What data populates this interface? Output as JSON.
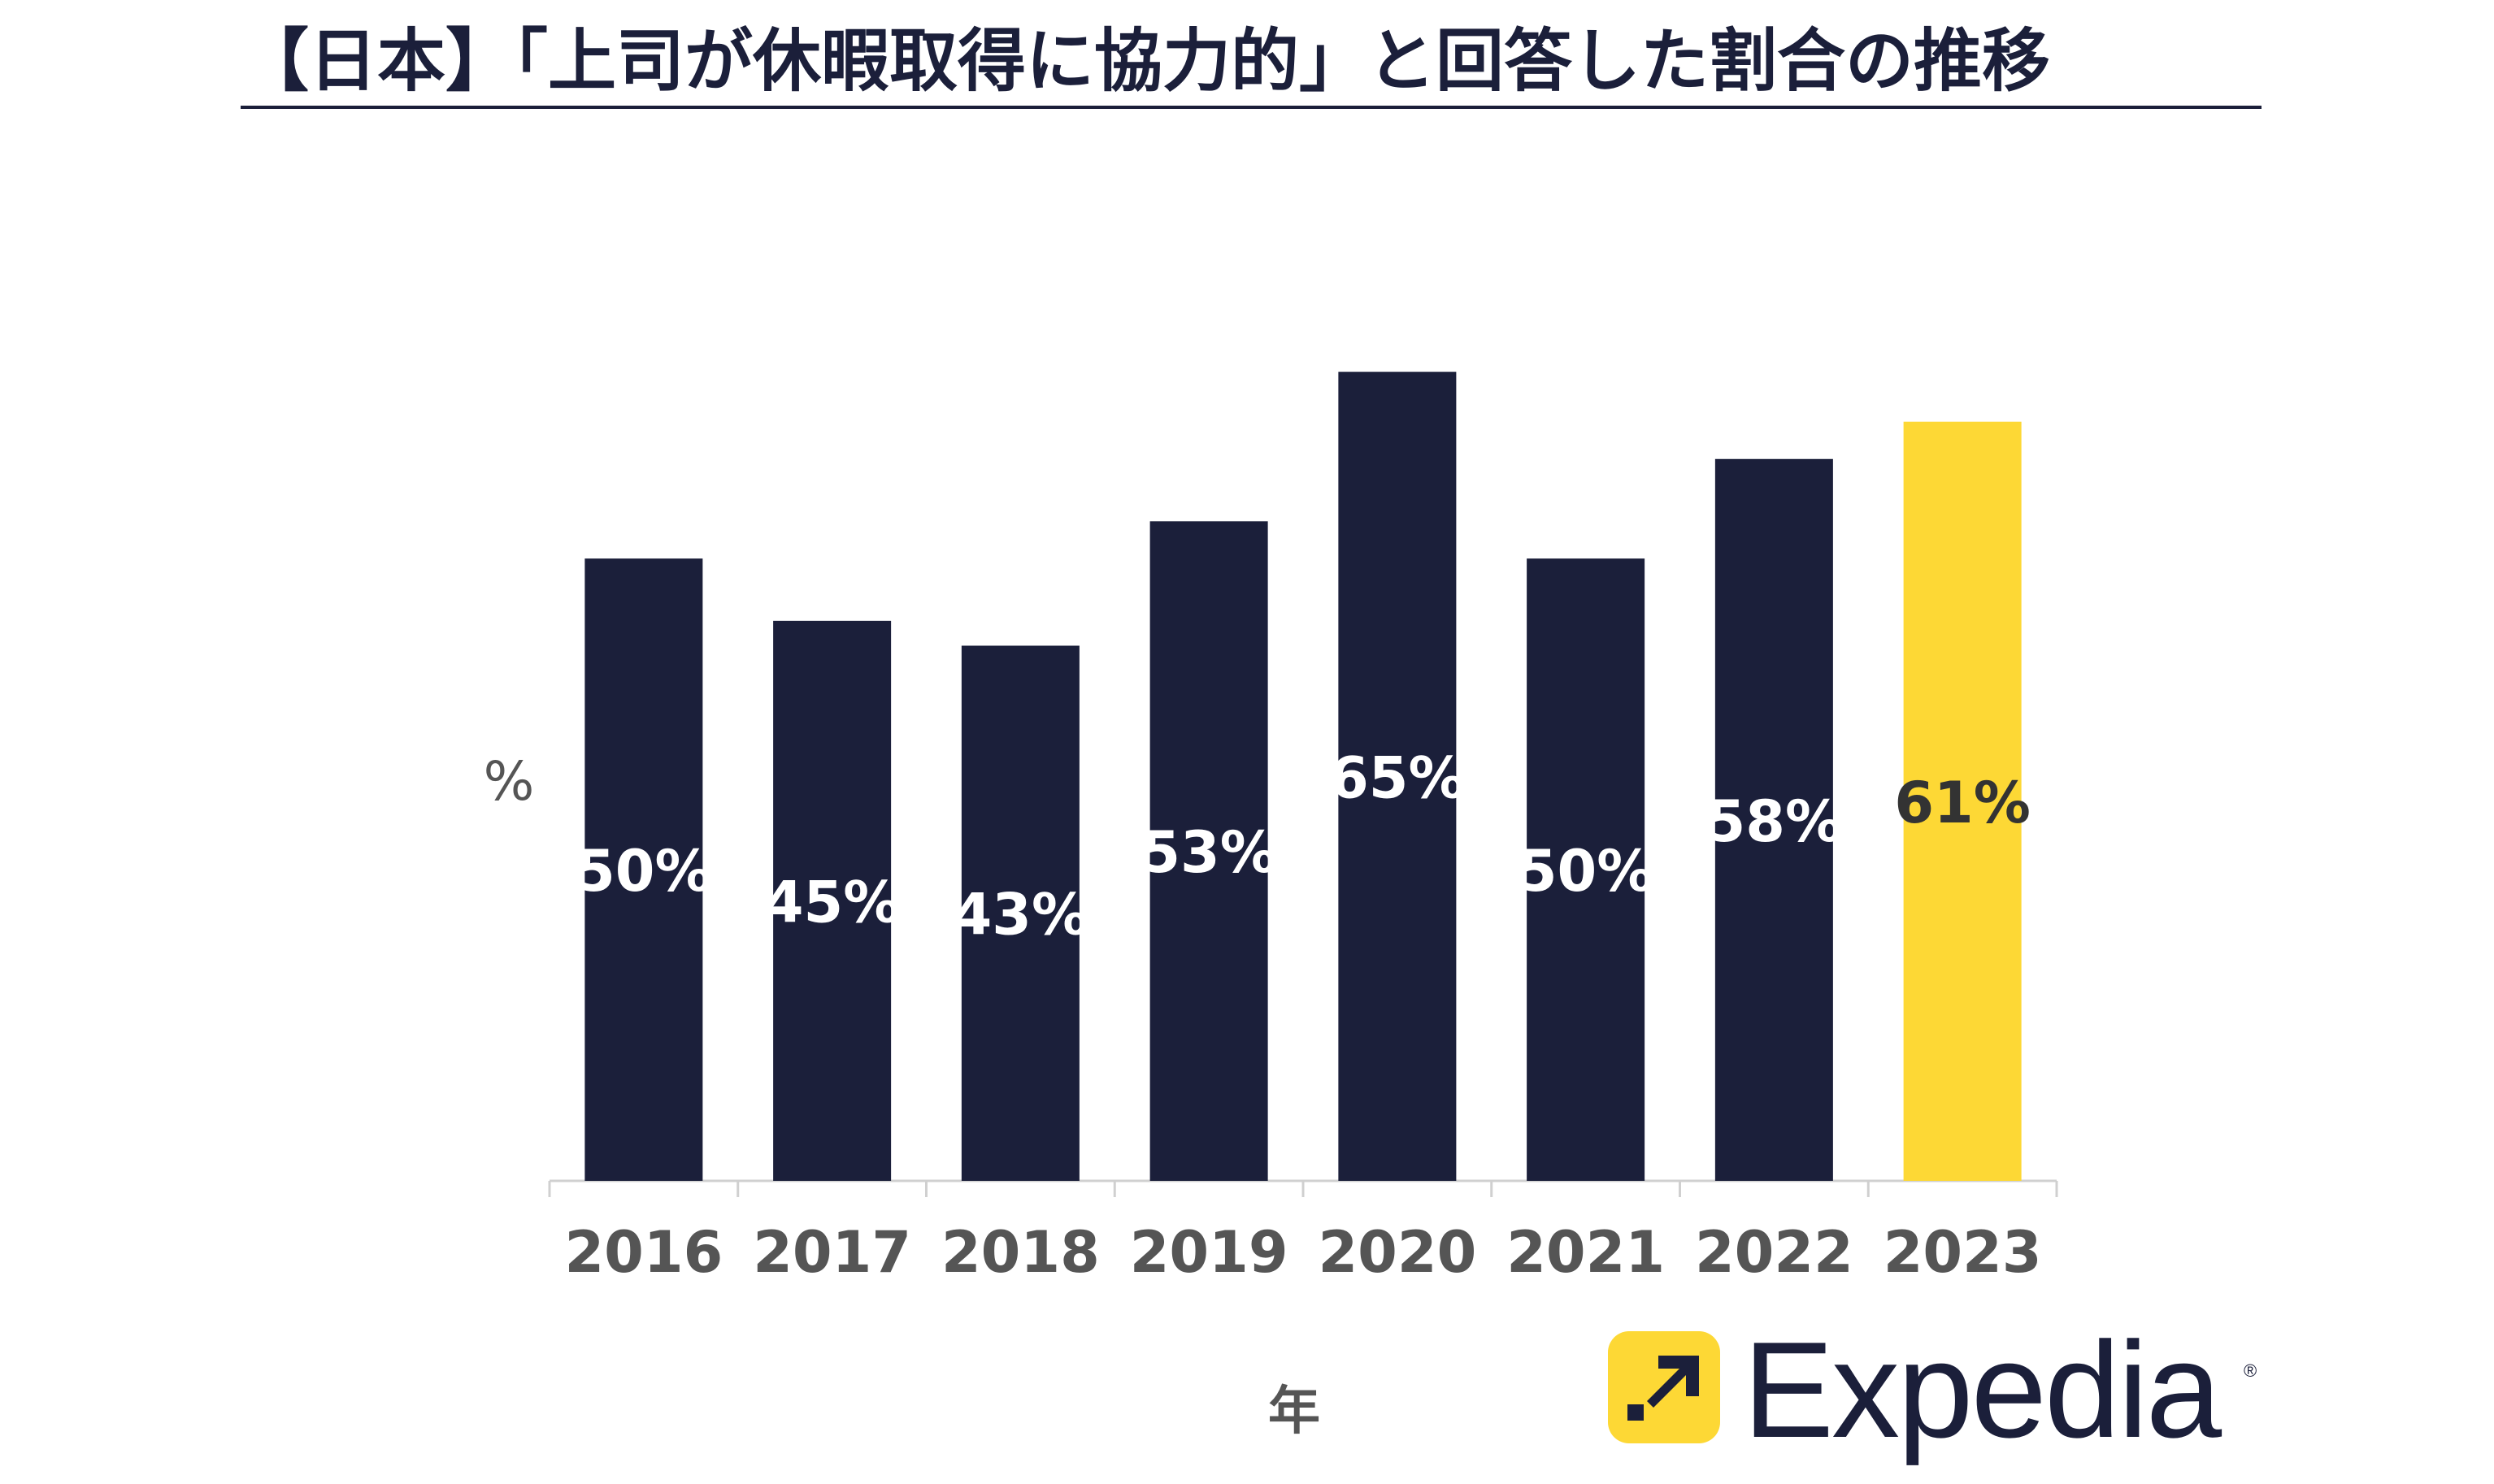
{
  "title": "【日本】「上司が休暇取得に協力的」と回答した割合の推移",
  "colors": {
    "bar": "#1b1f3a",
    "highlight": "#fdd835",
    "label_on_dark": "#ffffff",
    "label_on_highlight": "#333333",
    "axis_text": "#555555",
    "axis_line": "#d0d0d0"
  },
  "chart_data": {
    "type": "bar",
    "categories": [
      "2016",
      "2017",
      "2018",
      "2019",
      "2020",
      "2021",
      "2022",
      "2023"
    ],
    "values": [
      50,
      45,
      43,
      53,
      65,
      50,
      58,
      61
    ],
    "data_labels": [
      "50%",
      "45%",
      "43%",
      "53%",
      "65%",
      "50%",
      "58%",
      "61%"
    ],
    "highlight_category": "2023",
    "xlabel": "年",
    "ylabel": "%",
    "ylim": [
      0,
      70
    ],
    "grid": false,
    "legend": "none"
  },
  "logo": {
    "text": "Expedia",
    "registered": "®",
    "icon": "expedia-arrow-icon"
  }
}
